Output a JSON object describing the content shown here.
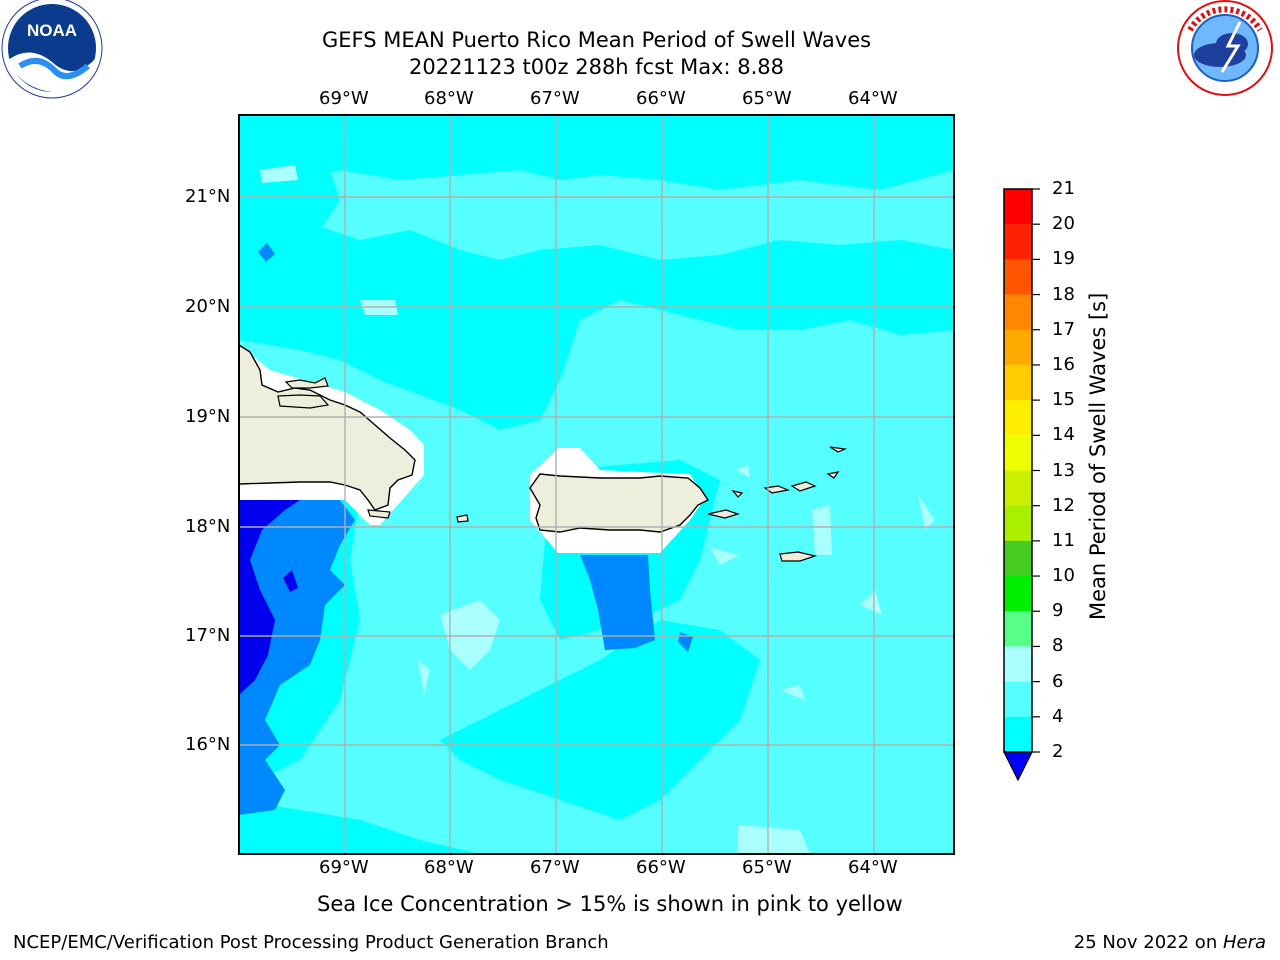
{
  "title": {
    "line1": "GEFS MEAN Puerto Rico Mean Period of Swell Waves",
    "line2": "20221123 t00z 288h fcst   Max: 8.88"
  },
  "logos": {
    "left": {
      "icon": "noaa-logo",
      "text": "NOAA",
      "ring_text": "NATIONAL OCEANIC AND ATMOSPHERIC ADMINISTRATION · U.S. DEPARTMENT OF COMMERCE"
    },
    "right": {
      "icon": "nws-logo",
      "ring_text": "NATIONAL WEATHER SERVICE"
    }
  },
  "map": {
    "lon_labels": [
      "69°W",
      "68°W",
      "67°W",
      "66°W",
      "65°W",
      "64°W"
    ],
    "lat_labels": [
      "21°N",
      "20°N",
      "19°N",
      "18°N",
      "17°N",
      "16°N"
    ],
    "land_color": "#eeeedd",
    "gridline_color": "#b0b0b0"
  },
  "colorbar": {
    "title": "Mean Period of Swell Waves [s]",
    "tick_labels": [
      "21",
      "20",
      "19",
      "18",
      "17",
      "16",
      "15",
      "14",
      "13",
      "12",
      "11",
      "10",
      "9",
      "8",
      "6",
      "4",
      "2"
    ],
    "colors": [
      "#ff0000",
      "#ff2200",
      "#ff5500",
      "#ff8800",
      "#ffaa00",
      "#ffcc00",
      "#ffee00",
      "#eeff00",
      "#ccee00",
      "#aaee00",
      "#44cc22",
      "#00ee00",
      "#55ff88",
      "#aaffff",
      "#55ffff",
      "#00ffff",
      "#0088ff",
      "#0000ff"
    ]
  },
  "caption": "Sea Ice Concentration > 15% is shown in pink to yellow",
  "footer": {
    "left": "NCEP/EMC/Verification Post Processing Product Generation Branch",
    "right_date": "25 Nov 2022 on ",
    "right_host": "Hera"
  }
}
